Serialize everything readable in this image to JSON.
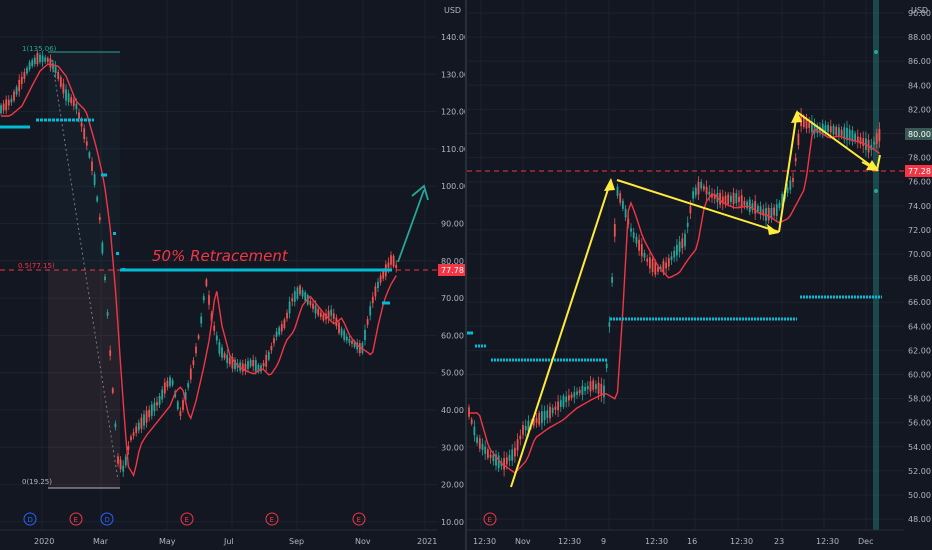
{
  "colors": {
    "background": "#131722",
    "grid": "#1e222d",
    "axis_text": "#b2b5be",
    "candle_up": "#26a69a",
    "candle_down": "#ef5350",
    "ma_line": "#f23645",
    "level_line": "#00bcd4",
    "annotation_red": "#f23645",
    "projection_arrow": "#26a69a",
    "trend_arrows": "#ffeb3b",
    "price_badge": "#f23645",
    "current_badge": "#3a5a56"
  },
  "left": {
    "currency": "USD",
    "annotation": "50% Retracement",
    "fib_top": "1(135.06)",
    "fib_mid": "0.5(77.15)",
    "fib_bottom": "0(19.25)",
    "last_price": "77.78",
    "price_ticks": [
      "140.00",
      "130.00",
      "120.00",
      "110.00",
      "100.00",
      "90.00",
      "80.00",
      "70.00",
      "60.00",
      "50.00",
      "40.00",
      "30.00",
      "20.00",
      "10.00"
    ],
    "time_ticks": [
      "2020",
      "Mar",
      "May",
      "Jul",
      "Sep",
      "Nov",
      "2021"
    ],
    "event_markers": [
      "D",
      "E",
      "D",
      "E",
      "E",
      "E"
    ]
  },
  "right": {
    "currency": "USD",
    "current_price": "80.00",
    "last_price": "77.28",
    "price_ticks": [
      "90.00",
      "88.00",
      "86.00",
      "84.00",
      "82.00",
      "80.00",
      "78.00",
      "76.00",
      "74.00",
      "72.00",
      "70.00",
      "68.00",
      "66.00",
      "64.00",
      "62.00",
      "60.00",
      "58.00",
      "56.00",
      "54.00",
      "52.00",
      "50.00",
      "48.00"
    ],
    "time_ticks": [
      "12:30",
      "Nov",
      "12:30",
      "9",
      "12:30",
      "16",
      "12:30",
      "23",
      "12:30",
      "Dec"
    ],
    "event_markers": [
      "E"
    ]
  }
}
